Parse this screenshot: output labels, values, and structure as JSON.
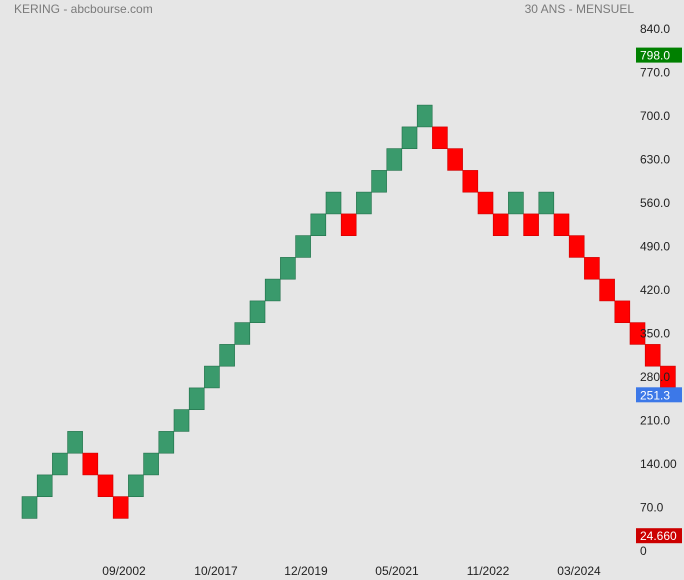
{
  "header": {
    "title": "KERING - abcbourse.com",
    "period": "30 ANS - MENSUEL"
  },
  "chart_data": {
    "type": "renko",
    "ylim": [
      0,
      840
    ],
    "y_ticks": [
      "0",
      "70.0",
      "140.00",
      "210.0",
      "280.0",
      "350.0",
      "420.0",
      "490.0",
      "560.0",
      "630.0",
      "700.0",
      "770.0",
      "840.0"
    ],
    "y_tick_values": [
      0,
      70,
      140,
      210,
      280,
      350,
      420,
      490,
      560,
      630,
      700,
      770,
      840
    ],
    "x_labels": [
      "09/2002",
      "10/2017",
      "12/2019",
      "05/2021",
      "11/2022",
      "03/2024"
    ],
    "box_size": 35,
    "bricks": [
      {
        "low": 52.5,
        "high": 87.5,
        "dir": "up"
      },
      {
        "low": 87.5,
        "high": 122.5,
        "dir": "up"
      },
      {
        "low": 122.5,
        "high": 157.5,
        "dir": "up"
      },
      {
        "low": 157.5,
        "high": 192.5,
        "dir": "up"
      },
      {
        "low": 122.5,
        "high": 157.5,
        "dir": "down"
      },
      {
        "low": 87.5,
        "high": 122.5,
        "dir": "down"
      },
      {
        "low": 52.5,
        "high": 87.5,
        "dir": "down"
      },
      {
        "low": 87.5,
        "high": 122.5,
        "dir": "up"
      },
      {
        "low": 122.5,
        "high": 157.5,
        "dir": "up"
      },
      {
        "low": 157.5,
        "high": 192.5,
        "dir": "up"
      },
      {
        "low": 192.5,
        "high": 227.5,
        "dir": "up"
      },
      {
        "low": 227.5,
        "high": 262.5,
        "dir": "up"
      },
      {
        "low": 262.5,
        "high": 297.5,
        "dir": "up"
      },
      {
        "low": 297.5,
        "high": 332.5,
        "dir": "up"
      },
      {
        "low": 332.5,
        "high": 367.5,
        "dir": "up"
      },
      {
        "low": 367.5,
        "high": 402.5,
        "dir": "up"
      },
      {
        "low": 402.5,
        "high": 437.5,
        "dir": "up"
      },
      {
        "low": 437.5,
        "high": 472.5,
        "dir": "up"
      },
      {
        "low": 472.5,
        "high": 507.5,
        "dir": "up"
      },
      {
        "low": 507.5,
        "high": 542.5,
        "dir": "up"
      },
      {
        "low": 542.5,
        "high": 577.5,
        "dir": "up"
      },
      {
        "low": 507.5,
        "high": 542.5,
        "dir": "down"
      },
      {
        "low": 542.5,
        "high": 577.5,
        "dir": "up"
      },
      {
        "low": 577.5,
        "high": 612.5,
        "dir": "up"
      },
      {
        "low": 612.5,
        "high": 647.5,
        "dir": "up"
      },
      {
        "low": 647.5,
        "high": 682.5,
        "dir": "up"
      },
      {
        "low": 682.5,
        "high": 717.5,
        "dir": "up"
      },
      {
        "low": 647.5,
        "high": 682.5,
        "dir": "down"
      },
      {
        "low": 612.5,
        "high": 647.5,
        "dir": "down"
      },
      {
        "low": 577.5,
        "high": 612.5,
        "dir": "down"
      },
      {
        "low": 542.5,
        "high": 577.5,
        "dir": "down"
      },
      {
        "low": 507.5,
        "high": 542.5,
        "dir": "down"
      },
      {
        "low": 542.5,
        "high": 577.5,
        "dir": "up"
      },
      {
        "low": 507.5,
        "high": 542.5,
        "dir": "down"
      },
      {
        "low": 542.5,
        "high": 577.5,
        "dir": "up"
      },
      {
        "low": 507.5,
        "high": 542.5,
        "dir": "down"
      },
      {
        "low": 472.5,
        "high": 507.5,
        "dir": "down"
      },
      {
        "low": 437.5,
        "high": 472.5,
        "dir": "down"
      },
      {
        "low": 402.5,
        "high": 437.5,
        "dir": "down"
      },
      {
        "low": 367.5,
        "high": 402.5,
        "dir": "down"
      },
      {
        "low": 332.5,
        "high": 367.5,
        "dir": "down"
      },
      {
        "low": 297.5,
        "high": 332.5,
        "dir": "down"
      },
      {
        "low": 262.5,
        "high": 297.5,
        "dir": "down"
      }
    ],
    "price_markers": [
      {
        "label": "798.0",
        "value": 798.0,
        "color": "#008000"
      },
      {
        "label": "251.3",
        "value": 251.3,
        "color": "#3c78e8"
      },
      {
        "label": "24.660",
        "value": 24.66,
        "color": "#cc0000"
      }
    ],
    "colors": {
      "up": "#3a9a6c",
      "down": "#ff0000",
      "background": "#e6e6e6",
      "text": "#222222",
      "muted_text": "#7a7a7a"
    }
  }
}
